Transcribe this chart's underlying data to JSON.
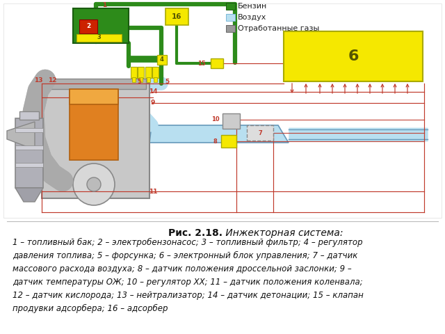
{
  "title_bold": "Рис. 2.18.",
  "title_italic": " Инжекторная система:",
  "caption": "1 – топливный бак; 2 – электробензонасос; 3 – топливный фильтр; 4 – регулятор давления топлива; 5 – форсунка; 6 – электронный блок управления; 7 – датчик массового расхода воздуха; 8 – датчик положения дроссельной заслонки; 9 – датчик температуры ОЖ; 10 – регулятор ХХ; 11 – датчик положения коленвала; 12 – датчик кислорода; 13 – нейтрализатор; 14 – датчик детонации; 15 – клапан продувки адсорбера; 16 – адсорбер",
  "bg_color": "#ffffff",
  "green": "#2d8b1a",
  "blue": "#b8dff0",
  "yellow": "#f5e800",
  "red": "#c0392b",
  "grey": "#aaaaaa",
  "silver": "#c8c8c8",
  "orange": "#e08020",
  "dark_grey": "#888888",
  "legend": [
    {
      "label": "Бензин",
      "color": "#2d8b1a",
      "edge": "#1a5c10"
    },
    {
      "label": "Воздух",
      "color": "#b8dff0",
      "edge": "#7ab8d8"
    },
    {
      "label": "Отработанные газы",
      "color": "#999999",
      "edge": "#666666"
    }
  ],
  "diagram_border": "#cc0000",
  "caption_lines": [
    "1 – топливный бак; 2 – электробензонасос; 3 – топливный фильтр; 4 – регулятор",
    "давления топлива; 5 – форсунка; 6 – электронный блок управления; 7 – датчик",
    "массового расхода воздуха; 8 – датчик положения дроссельной заслонки; 9 –",
    "датчик температуры ОЖ; 10 – регулятор ХХ; 11 – датчик положения коленвала;",
    "12 – датчик кислорода; 13 – нейтрализатор; 14 – датчик детонации; 15 – клапан",
    "продувки адсорбера; 16 – адсорбер"
  ]
}
